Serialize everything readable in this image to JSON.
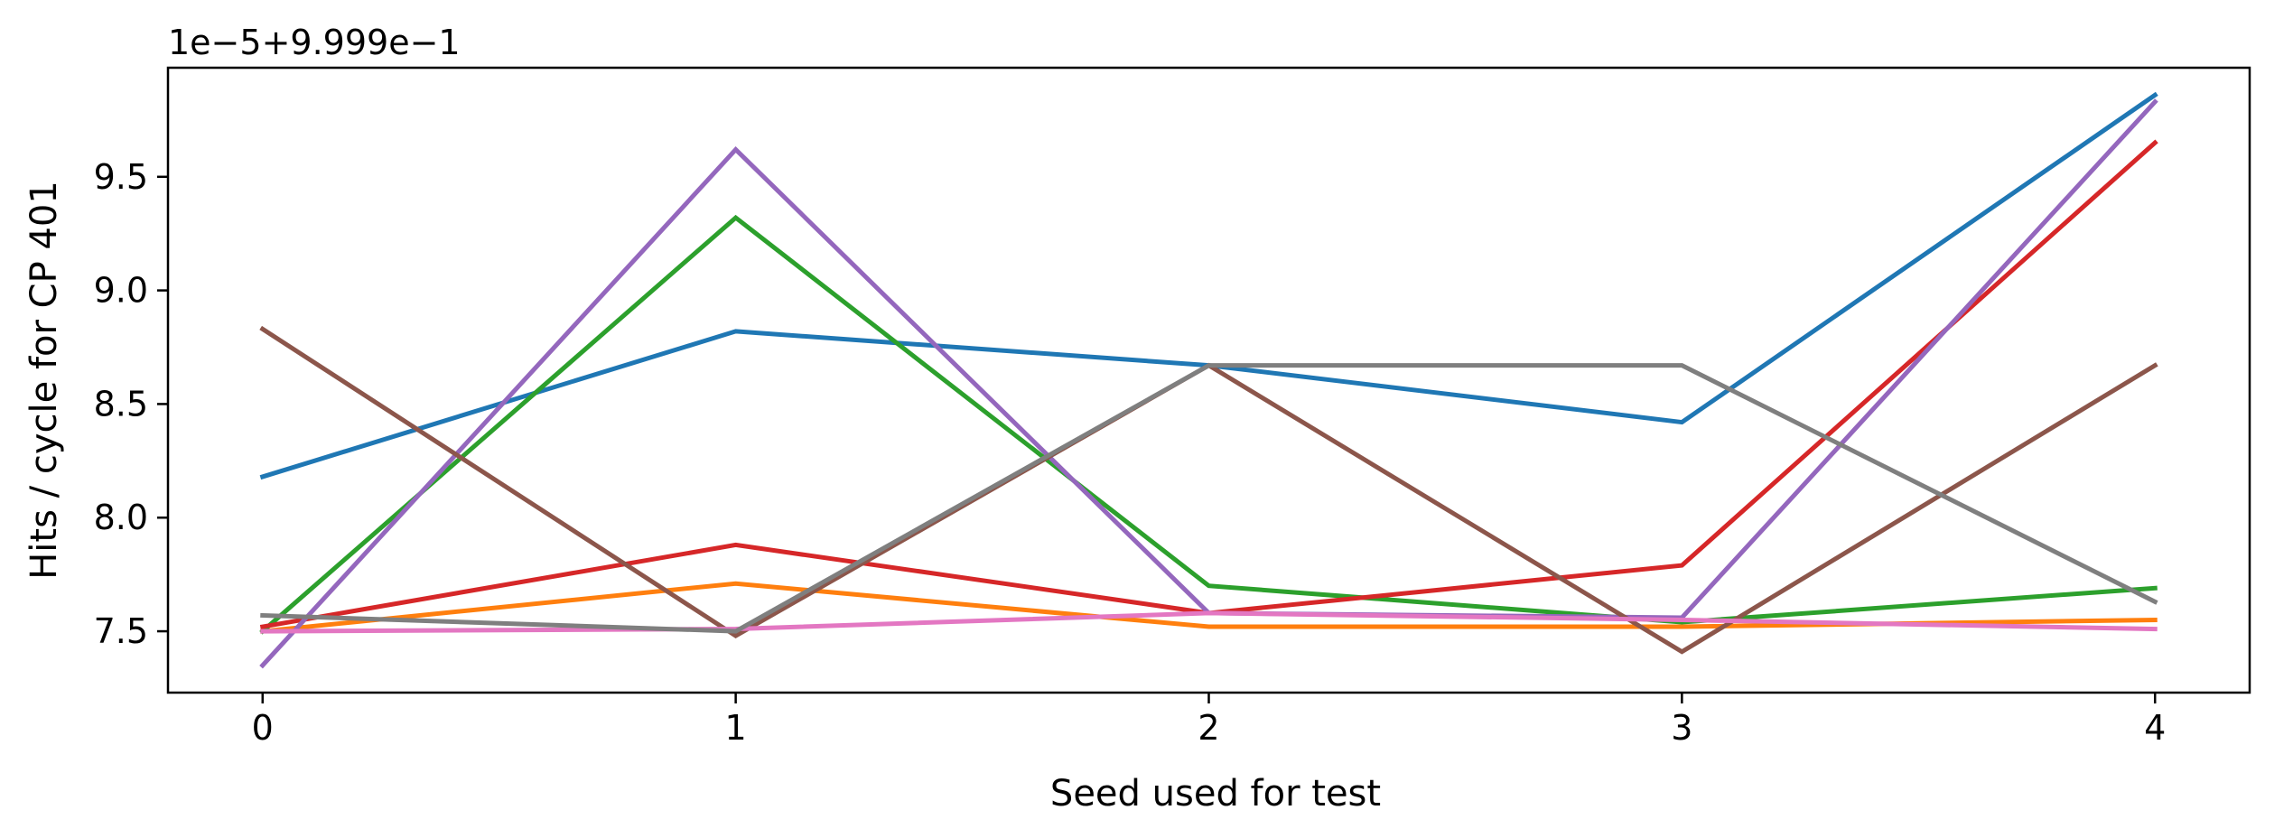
{
  "chart_data": {
    "type": "line",
    "title": "",
    "xlabel": "Seed used for test",
    "ylabel": "Hits / cycle for CP 401",
    "offset_text": "1e−5+9.999e−1",
    "x": [
      0,
      1,
      2,
      3,
      4
    ],
    "x_ticks": [
      0,
      1,
      2,
      3,
      4
    ],
    "x_tick_labels": [
      "0",
      "1",
      "2",
      "3",
      "4"
    ],
    "xlim": [
      -0.2,
      4.2
    ],
    "y_ticks": [
      7.5,
      8.0,
      8.5,
      9.0,
      9.5
    ],
    "y_tick_labels": [
      "7.5",
      "8.0",
      "8.5",
      "9.0",
      "9.5"
    ],
    "ylim": [
      7.23,
      9.98
    ],
    "y_unit_note": "y values are in units of 1e-5, offset by 0.9999",
    "grid": false,
    "legend": "none",
    "series": [
      {
        "color": "#1f77b4",
        "values": [
          8.18,
          8.82,
          8.67,
          8.42,
          9.86
        ]
      },
      {
        "color": "#ff7f0e",
        "values": [
          7.5,
          7.71,
          7.52,
          7.52,
          7.55
        ]
      },
      {
        "color": "#2ca02c",
        "values": [
          7.5,
          9.32,
          7.7,
          7.54,
          7.69
        ]
      },
      {
        "color": "#d62728",
        "values": [
          7.52,
          7.88,
          7.58,
          7.79,
          9.65
        ]
      },
      {
        "color": "#9467bd",
        "values": [
          7.35,
          9.62,
          7.58,
          7.56,
          9.83
        ]
      },
      {
        "color": "#8c564b",
        "values": [
          8.83,
          7.48,
          8.67,
          7.41,
          8.67
        ]
      },
      {
        "color": "#e377c2",
        "values": [
          7.5,
          7.51,
          7.58,
          7.55,
          7.51
        ]
      },
      {
        "color": "#7f7f7f",
        "values": [
          7.57,
          7.5,
          8.67,
          8.67,
          7.63
        ]
      }
    ]
  }
}
